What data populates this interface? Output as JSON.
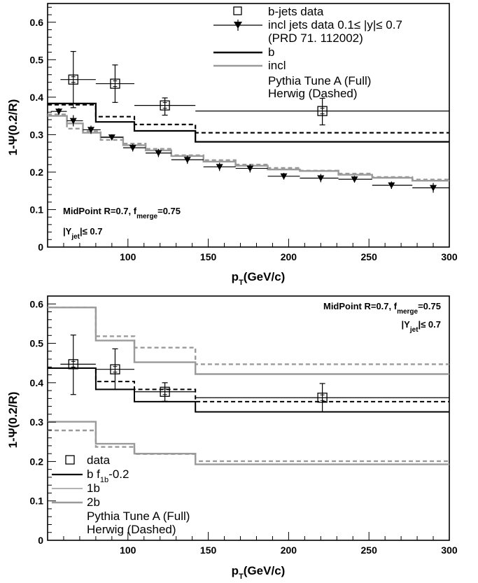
{
  "chart_data": [
    {
      "type": "line",
      "xlabel": "p_T(GeV/c)",
      "ylabel": "1-Ψ(0.2/R)",
      "xlim": [
        50,
        300
      ],
      "ylim": [
        0,
        0.65
      ],
      "xticks": [
        100,
        150,
        200,
        250,
        300
      ],
      "yticks": [
        0.1,
        0.2,
        0.3,
        0.4,
        0.5,
        0.6
      ],
      "annotations": [
        "MidPoint R=0.7, f_merge=0.75",
        "|Y_jet|≤ 0.7"
      ],
      "annotation_position": "bottom-left",
      "legend_position": "top-right",
      "legend": [
        "b-jets data",
        "incl jets data 0.1≤ |y|≤ 0.7",
        "(PRD 71. 112002)",
        "b",
        "incl",
        "Pythia Tune A (Full)",
        "Herwig (Dashed)"
      ],
      "series": [
        {
          "name": "b-jets data",
          "kind": "points",
          "marker": "open-square",
          "color": "#000000",
          "x": [
            66,
            92,
            123,
            221
          ],
          "y": [
            0.447,
            0.436,
            0.378,
            0.363
          ],
          "xerr": [
            [
              58,
              80
            ],
            [
              80,
              104
            ],
            [
              104,
              142
            ],
            [
              142,
              300
            ]
          ],
          "yerr": [
            [
              0.372,
              0.522
            ],
            [
              0.386,
              0.486
            ],
            [
              0.352,
              0.398
            ],
            [
              0.326,
              0.397
            ]
          ]
        },
        {
          "name": "incl jets data 0.1≤ |y|≤ 0.7",
          "kind": "points",
          "marker": "filled-triangle-down",
          "color": "#000000",
          "x": [
            57,
            66,
            77,
            90,
            103,
            119,
            137,
            157,
            176,
            197,
            220,
            241,
            264,
            290
          ],
          "y": [
            0.362,
            0.337,
            0.313,
            0.293,
            0.265,
            0.251,
            0.233,
            0.214,
            0.21,
            0.189,
            0.184,
            0.181,
            0.165,
            0.158
          ],
          "xerr": [
            [
              52,
              62
            ],
            [
              62,
              72
            ],
            [
              72,
              83
            ],
            [
              83,
              97
            ],
            [
              97,
              111
            ],
            [
              111,
              127
            ],
            [
              127,
              147
            ],
            [
              147,
              167
            ],
            [
              167,
              187
            ],
            [
              187,
              207
            ],
            [
              207,
              231
            ],
            [
              231,
              252
            ],
            [
              252,
              277
            ],
            [
              277,
              300
            ]
          ],
          "yerr": [
            [
              0.353,
              0.371
            ],
            [
              0.322,
              0.352
            ],
            [
              0.302,
              0.324
            ],
            [
              0.285,
              0.301
            ],
            [
              0.255,
              0.275
            ],
            [
              0.24,
              0.262
            ],
            [
              0.222,
              0.244
            ],
            [
              0.203,
              0.225
            ],
            [
              0.199,
              0.221
            ],
            [
              0.18,
              0.198
            ],
            [
              0.173,
              0.195
            ],
            [
              0.172,
              0.19
            ],
            [
              0.155,
              0.175
            ],
            [
              0.145,
              0.171
            ]
          ]
        },
        {
          "name": "b",
          "kind": "step",
          "style": "solid",
          "color": "#000000",
          "lw": 2.2,
          "edges": [
            50,
            80,
            104,
            142,
            300
          ],
          "values": [
            0.383,
            0.334,
            0.31,
            0.281
          ]
        },
        {
          "name": "b",
          "kind": "step",
          "style": "dashed",
          "color": "#000000",
          "lw": 2.2,
          "edges": [
            50,
            80,
            104,
            142,
            300
          ],
          "values": [
            0.38,
            0.348,
            0.327,
            0.305
          ]
        },
        {
          "name": "incl",
          "kind": "step",
          "style": "solid",
          "color": "#9a9a9a",
          "lw": 2.4,
          "edges": [
            50,
            62,
            72,
            83,
            97,
            111,
            127,
            147,
            167,
            187,
            207,
            231,
            252,
            277,
            300
          ],
          "values": [
            0.35,
            0.33,
            0.305,
            0.293,
            0.272,
            0.258,
            0.243,
            0.228,
            0.217,
            0.207,
            0.203,
            0.193,
            0.185,
            0.177
          ]
        },
        {
          "name": "incl",
          "kind": "step",
          "style": "dashed",
          "color": "#9a9a9a",
          "lw": 2.4,
          "edges": [
            50,
            62,
            72,
            83,
            97,
            111,
            127,
            147,
            167,
            187,
            207,
            231,
            252,
            277,
            300
          ],
          "values": [
            0.354,
            0.316,
            0.309,
            0.286,
            0.276,
            0.262,
            0.245,
            0.232,
            0.22,
            0.211,
            0.204,
            0.196,
            0.187,
            0.18
          ]
        }
      ]
    },
    {
      "type": "line",
      "xlabel": "p_T(GeV/c)",
      "ylabel": "1-Ψ(0.2/R)",
      "xlim": [
        50,
        300
      ],
      "ylim": [
        0,
        0.62
      ],
      "xticks": [
        100,
        150,
        200,
        250,
        300
      ],
      "yticks": [
        0.1,
        0.2,
        0.3,
        0.4,
        0.5,
        0.6
      ],
      "annotations": [
        "MidPoint R=0.7, f_merge=0.75",
        "|Y_jet|≤ 0.7"
      ],
      "annotation_position": "top-right",
      "legend_position": "bottom-left",
      "legend": [
        "data",
        "b f_1b-0.2",
        "1b",
        "2b",
        "Pythia Tune A (Full)",
        "Herwig (Dashed)"
      ],
      "series": [
        {
          "name": "data",
          "kind": "points",
          "marker": "open-square",
          "color": "#000000",
          "x": [
            66,
            92,
            123,
            221
          ],
          "y": [
            0.447,
            0.434,
            0.377,
            0.362
          ],
          "xerr": [
            [
              58,
              80
            ],
            [
              80,
              104
            ],
            [
              104,
              142
            ],
            [
              142,
              300
            ]
          ],
          "yerr": [
            [
              0.37,
              0.521
            ],
            [
              0.383,
              0.486
            ],
            [
              0.353,
              0.4
            ],
            [
              0.326,
              0.398
            ]
          ]
        },
        {
          "name": "b f_1b-0.2",
          "kind": "step",
          "style": "solid",
          "color": "#000000",
          "lw": 2.0,
          "edges": [
            50,
            80,
            104,
            142,
            300
          ],
          "values": [
            0.437,
            0.383,
            0.352,
            0.326
          ]
        },
        {
          "name": "b f_1b-0.2",
          "kind": "step",
          "style": "dashed",
          "color": "#000000",
          "lw": 2.0,
          "edges": [
            50,
            80,
            104,
            142,
            300
          ],
          "values": [
            0.437,
            0.403,
            0.383,
            0.352
          ]
        },
        {
          "name": "1b",
          "kind": "step",
          "style": "solid",
          "color": "#9a9a9a",
          "lw": 2.4,
          "edges": [
            50,
            80,
            104,
            142,
            300
          ],
          "values": [
            0.591,
            0.507,
            0.452,
            0.422
          ]
        },
        {
          "name": "1b",
          "kind": "step",
          "style": "dashed",
          "color": "#9a9a9a",
          "lw": 2.4,
          "edges": [
            50,
            80,
            104,
            142,
            300
          ],
          "values": [
            0.591,
            0.518,
            0.489,
            0.447
          ]
        },
        {
          "name": "2b",
          "kind": "step",
          "style": "solid",
          "color": "#9a9a9a",
          "lw": 2.4,
          "edges": [
            50,
            80,
            104,
            142,
            300
          ],
          "values": [
            0.301,
            0.245,
            0.22,
            0.193
          ]
        },
        {
          "name": "2b",
          "kind": "step",
          "style": "dashed",
          "color": "#9a9a9a",
          "lw": 2.4,
          "edges": [
            50,
            80,
            104,
            142,
            300
          ],
          "values": [
            0.279,
            0.237,
            0.219,
            0.201
          ]
        }
      ]
    }
  ]
}
